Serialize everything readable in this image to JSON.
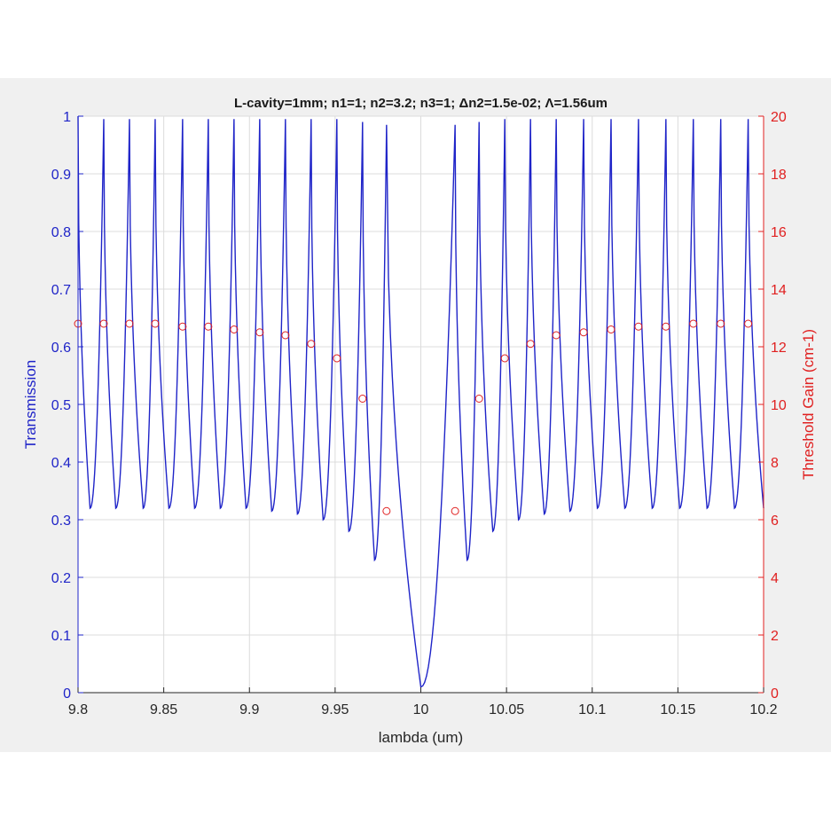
{
  "chart_data": {
    "type": "line",
    "title": "L-cavity=1mm; n1=1; n2=3.2; n3=1; Δn2=1.5e-02; Λ=1.56um",
    "xlabel": "lambda (um)",
    "ylabel_left": "Transmission",
    "ylabel_right": "Threshold Gain (cm-1)",
    "xlim": [
      9.8,
      10.2
    ],
    "ylim_left": [
      0,
      1
    ],
    "ylim_right": [
      0,
      20
    ],
    "x_ticks": [
      "9.8",
      "9.85",
      "9.9",
      "9.95",
      "10",
      "10.05",
      "10.1",
      "10.15",
      "10.2"
    ],
    "y_left_ticks": [
      "0",
      "0.1",
      "0.2",
      "0.3",
      "0.4",
      "0.5",
      "0.6",
      "0.7",
      "0.8",
      "0.9",
      "1"
    ],
    "y_right_ticks": [
      "0",
      "2",
      "4",
      "6",
      "8",
      "10",
      "12",
      "14",
      "16",
      "18",
      "20"
    ],
    "grid": true,
    "colors": {
      "transmission": "#1f24c8",
      "threshold_gain": "#e02020",
      "left_axis": "#1f24c8",
      "right_axis": "#e02020"
    },
    "series": [
      {
        "name": "Transmission",
        "axis": "left",
        "style": "line",
        "peaks": [
          [
            9.8,
            1.0
          ],
          [
            9.815,
            0.995
          ],
          [
            9.83,
            0.995
          ],
          [
            9.845,
            0.995
          ],
          [
            9.861,
            0.995
          ],
          [
            9.876,
            0.995
          ],
          [
            9.891,
            0.995
          ],
          [
            9.906,
            0.995
          ],
          [
            9.921,
            0.995
          ],
          [
            9.936,
            0.995
          ],
          [
            9.951,
            0.995
          ],
          [
            9.966,
            0.99
          ],
          [
            9.98,
            0.985
          ],
          [
            10.02,
            0.985
          ],
          [
            10.034,
            0.99
          ],
          [
            10.049,
            0.995
          ],
          [
            10.064,
            0.995
          ],
          [
            10.079,
            0.995
          ],
          [
            10.095,
            0.995
          ],
          [
            10.111,
            0.995
          ],
          [
            10.127,
            0.995
          ],
          [
            10.143,
            0.995
          ],
          [
            10.159,
            0.995
          ],
          [
            10.175,
            0.995
          ],
          [
            10.191,
            0.995
          ]
        ],
        "valleys": [
          [
            9.807,
            0.32
          ],
          [
            9.822,
            0.32
          ],
          [
            9.838,
            0.32
          ],
          [
            9.853,
            0.32
          ],
          [
            9.868,
            0.32
          ],
          [
            9.883,
            0.32
          ],
          [
            9.898,
            0.32
          ],
          [
            9.913,
            0.315
          ],
          [
            9.928,
            0.31
          ],
          [
            9.943,
            0.3
          ],
          [
            9.958,
            0.28
          ],
          [
            9.973,
            0.23
          ],
          [
            10.0,
            0.01
          ],
          [
            10.027,
            0.23
          ],
          [
            10.042,
            0.28
          ],
          [
            10.057,
            0.3
          ],
          [
            10.072,
            0.31
          ],
          [
            10.087,
            0.315
          ],
          [
            10.103,
            0.32
          ],
          [
            10.119,
            0.32
          ],
          [
            10.135,
            0.32
          ],
          [
            10.151,
            0.32
          ],
          [
            10.167,
            0.32
          ],
          [
            10.183,
            0.32
          ],
          [
            10.2,
            0.32
          ]
        ]
      },
      {
        "name": "Threshold Gain",
        "axis": "right",
        "style": "markers",
        "x": [
          9.8,
          9.815,
          9.83,
          9.845,
          9.861,
          9.876,
          9.891,
          9.906,
          9.921,
          9.936,
          9.951,
          9.966,
          9.98,
          10.02,
          10.034,
          10.049,
          10.064,
          10.079,
          10.095,
          10.111,
          10.127,
          10.143,
          10.159,
          10.175,
          10.191
        ],
        "y": [
          12.8,
          12.8,
          12.8,
          12.8,
          12.7,
          12.7,
          12.6,
          12.5,
          12.4,
          12.1,
          11.6,
          10.2,
          6.3,
          6.3,
          10.2,
          11.6,
          12.1,
          12.4,
          12.5,
          12.6,
          12.7,
          12.7,
          12.8,
          12.8,
          12.8
        ]
      }
    ]
  }
}
